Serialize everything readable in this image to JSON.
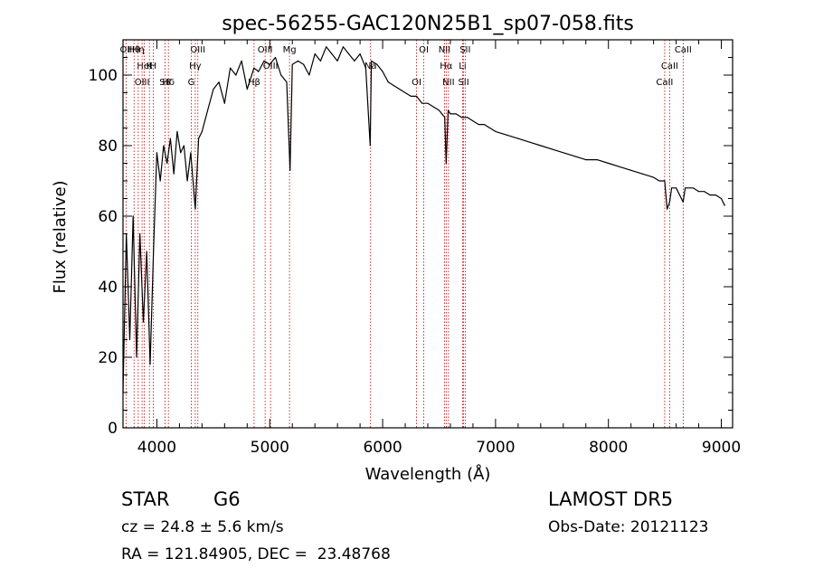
{
  "chart_data": {
    "type": "line",
    "title": "spec-56255-GAC120N25B1_sp07-058.fits",
    "xlabel": "Wavelength (Å)",
    "ylabel": "Flux (relative)",
    "xlim": [
      3700,
      9100
    ],
    "ylim": [
      0,
      110
    ],
    "x_ticks": [
      4000,
      5000,
      6000,
      7000,
      8000,
      9000
    ],
    "y_ticks": [
      0,
      20,
      40,
      60,
      80,
      100
    ],
    "grid": false,
    "series": [
      {
        "x": [
          3700,
          3730,
          3760,
          3790,
          3820,
          3850,
          3880,
          3910,
          3940,
          3970,
          4000,
          4030,
          4060,
          4090,
          4120,
          4150,
          4180,
          4210,
          4240,
          4270,
          4300,
          4340,
          4370,
          4400,
          4450,
          4500,
          4550,
          4600,
          4650,
          4700,
          4750,
          4800,
          4860,
          4900,
          4950,
          5000,
          5050,
          5100,
          5150,
          5180,
          5200,
          5250,
          5300,
          5350,
          5400,
          5450,
          5500,
          5550,
          5600,
          5650,
          5700,
          5750,
          5800,
          5850,
          5890,
          5900,
          5950,
          6000,
          6050,
          6100,
          6150,
          6200,
          6250,
          6300,
          6350,
          6400,
          6450,
          6500,
          6550,
          6563,
          6580,
          6600,
          6650,
          6700,
          6750,
          6800,
          6850,
          6900,
          6950,
          7000,
          7100,
          7200,
          7300,
          7400,
          7500,
          7600,
          7700,
          7800,
          7900,
          8000,
          8100,
          8200,
          8300,
          8400,
          8450,
          8498,
          8520,
          8542,
          8560,
          8600,
          8662,
          8680,
          8700,
          8750,
          8800,
          8850,
          8900,
          8950,
          9000,
          9030
        ],
        "values": [
          10,
          55,
          25,
          60,
          20,
          55,
          30,
          50,
          18,
          50,
          78,
          70,
          80,
          75,
          82,
          72,
          84,
          78,
          80,
          70,
          78,
          62,
          82,
          84,
          90,
          96,
          98,
          92,
          102,
          100,
          104,
          96,
          102,
          101,
          104,
          103,
          105,
          100,
          98,
          73,
          103,
          104,
          103,
          100,
          106,
          104,
          108,
          106,
          104,
          108,
          106,
          104,
          106,
          102,
          80,
          104,
          103,
          101,
          98,
          97,
          96,
          95,
          94,
          94,
          92,
          92,
          91,
          90,
          88,
          75,
          90,
          89,
          89,
          88,
          88,
          87,
          86,
          86,
          85,
          84,
          83,
          82,
          81,
          80,
          79,
          78,
          77,
          76,
          76,
          75,
          74,
          73,
          72,
          71,
          70,
          70,
          62,
          64,
          68,
          68,
          64,
          68,
          68,
          68,
          67,
          67,
          66,
          66,
          65,
          63
        ]
      }
    ],
    "line_markers": [
      {
        "label": "Hθ",
        "x": 3798
      },
      {
        "label": "K",
        "x": 3934
      },
      {
        "label": "Hδ",
        "x": 4102
      },
      {
        "label": "OII",
        "x": 3727
      },
      {
        "label": "HeI",
        "x": 3889
      },
      {
        "label": "SII",
        "x": 4072
      },
      {
        "label": "OIII",
        "x": 4363
      },
      {
        "label": "Hγ",
        "x": 4340
      },
      {
        "label": "OIII",
        "x": 3869
      },
      {
        "label": "Hη",
        "x": 3835
      },
      {
        "label": "H",
        "x": 3968
      },
      {
        "label": "G",
        "x": 4305
      },
      {
        "label": "OIII",
        "x": 4959
      },
      {
        "label": "OIII",
        "x": 5007
      },
      {
        "label": "Hβ",
        "x": 4861
      },
      {
        "label": "Mg",
        "x": 5175
      },
      {
        "label": "Na",
        "x": 5893
      },
      {
        "label": "OI",
        "x": 6300
      },
      {
        "label": "OI",
        "x": 6364
      },
      {
        "label": "Hα",
        "x": 6563
      },
      {
        "label": "SII",
        "x": 6717
      },
      {
        "label": "NII",
        "x": 6548
      },
      {
        "label": "Li",
        "x": 6708
      },
      {
        "label": "NII",
        "x": 6583
      },
      {
        "label": "SII",
        "x": 6731
      },
      {
        "label": "CaII",
        "x": 8542
      },
      {
        "label": "CaII",
        "x": 8498
      },
      {
        "label": "CaII",
        "x": 8662
      }
    ]
  },
  "info": {
    "object_class": "STAR",
    "subclass": "G6",
    "survey": "LAMOST DR5",
    "redshift": "cz = 24.8 ± 5.6 km/s",
    "obs_date": "Obs-Date: 20121123",
    "coordinates": "RA = 121.84905, DEC =  23.48768"
  }
}
